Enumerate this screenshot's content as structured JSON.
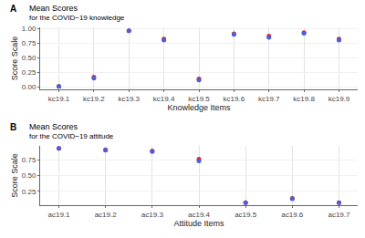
{
  "chart_data": [
    {
      "type": "scatter",
      "panel_label": "A",
      "title": "Mean Scores",
      "subtitle": "for the COVID−19 knowledge",
      "x_label": "Knowledge Items",
      "y_label": "Score Scale",
      "categories": [
        "kc19.1",
        "kc19.2",
        "kc19.3",
        "kc19.4",
        "kc19.5",
        "kc19.6",
        "kc19.7",
        "kc19.8",
        "kc19.9"
      ],
      "series": [
        {
          "color": "#e8272a",
          "values": [
            0.01,
            0.17,
            0.96,
            0.82,
            0.14,
            0.91,
            0.87,
            0.93,
            0.82
          ]
        },
        {
          "color": "#4a5fd8",
          "values": [
            0.01,
            0.15,
            0.96,
            0.8,
            0.12,
            0.9,
            0.85,
            0.92,
            0.8
          ]
        }
      ],
      "ylim": [
        -0.04,
        1.02
      ],
      "yticks": [
        {
          "value": 0,
          "label": "0.00"
        },
        0.25,
        {
          "value": 0.5,
          "label": "0.50"
        },
        0.75,
        {
          "value": 1,
          "label": "1.00"
        }
      ],
      "grid": true,
      "marker": "circle"
    },
    {
      "type": "scatter",
      "panel_label": "B",
      "title": "Mean Scores",
      "subtitle": "for the COVID−19 attitude",
      "x_label": "Attitude Items",
      "y_label": "Score Scale",
      "categories": [
        "ac19.1",
        "ac19.2",
        "ac19.3",
        "ac19.4",
        "ac19.5",
        "ac19.6",
        "ac19.7"
      ],
      "series": [
        {
          "color": "#e8272a",
          "values": [
            0.93,
            0.91,
            0.89,
            0.76,
            0.07,
            0.14,
            0.07
          ]
        },
        {
          "color": "#4a5fd8",
          "values": [
            0.93,
            0.9,
            0.88,
            0.73,
            0.07,
            0.13,
            0.07
          ]
        }
      ],
      "ylim": [
        0.03,
        0.97
      ],
      "yticks": [
        0.25,
        {
          "value": 0.5,
          "label": "0.50"
        },
        0.75
      ],
      "grid": true,
      "marker": "circle"
    }
  ]
}
